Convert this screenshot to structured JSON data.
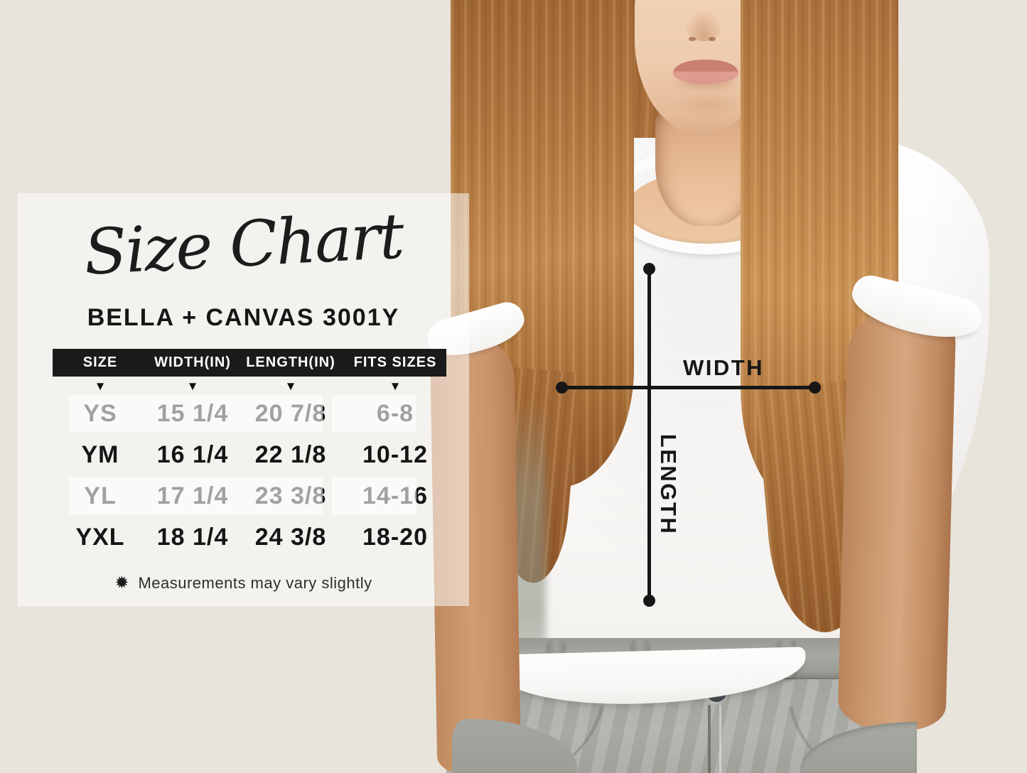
{
  "size_panel": {
    "title": "Size Chart",
    "subtitle": "BELLA + CANVAS 3001Y",
    "table": {
      "headers": [
        "SIZE",
        "WIDTH(IN)",
        "LENGTH(IN)",
        "FITS SIZES"
      ],
      "marker": "▼",
      "rows": [
        {
          "size": "YS",
          "width_in": "15 1/4",
          "length_in": "20 7/8",
          "fits_sizes": "6-8"
        },
        {
          "size": "YM",
          "width_in": "16 1/4",
          "length_in": "22 1/8",
          "fits_sizes": "10-12"
        },
        {
          "size": "YL",
          "width_in": "17 1/4",
          "length_in": "23 3/8",
          "fits_sizes": "14-16"
        },
        {
          "size": "YXL",
          "width_in": "18 1/4",
          "length_in": "24 3/8",
          "fits_sizes": "18-20"
        }
      ]
    },
    "note": {
      "icon": "✹",
      "text": "Measurements may vary slightly"
    },
    "header_bar_color": "#1b1b1b"
  },
  "measure_overlay": {
    "width_label": "WIDTH",
    "length_label": "LENGTH",
    "line_color": "#161616"
  },
  "chart_data": {
    "type": "table",
    "title": "Size Chart",
    "subtitle": "BELLA + CANVAS 3001Y",
    "columns": [
      "SIZE",
      "WIDTH(IN)",
      "LENGTH(IN)",
      "FITS SIZES"
    ],
    "rows": [
      [
        "YS",
        "15 1/4",
        "20 7/8",
        "6-8"
      ],
      [
        "YM",
        "16 1/4",
        "22 1/8",
        "10-12"
      ],
      [
        "YL",
        "17 1/4",
        "23 3/8",
        "14-16"
      ],
      [
        "YXL",
        "18 1/4",
        "24 3/8",
        "18-20"
      ]
    ],
    "footnote": "Measurements may vary slightly",
    "annotations": [
      "WIDTH",
      "LENGTH"
    ]
  }
}
